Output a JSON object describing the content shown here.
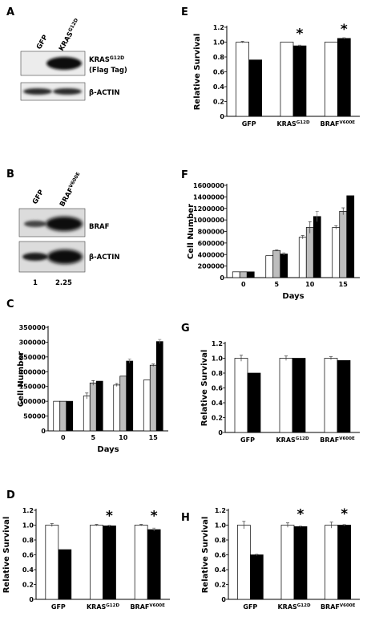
{
  "panels": {
    "A": {
      "letter": "A",
      "lanes": [
        "GFP",
        "KRAS",
        "G12D"
      ],
      "band_labels": [
        {
          "main": "KRAS",
          "sup": "G12D",
          "sub": "(Flag Tag)"
        },
        {
          "main": "β-ACTIN"
        }
      ]
    },
    "B": {
      "letter": "B",
      "lanes": [
        "GFP",
        "BRAF",
        "V600E"
      ],
      "band_labels": [
        {
          "main": "BRAF"
        },
        {
          "main": "β-ACTIN"
        }
      ],
      "quant": [
        "1",
        "2.25"
      ]
    },
    "C": {
      "letter": "C"
    },
    "D": {
      "letter": "D"
    },
    "E": {
      "letter": "E"
    },
    "F": {
      "letter": "F"
    },
    "G": {
      "letter": "G"
    },
    "H": {
      "letter": "H"
    }
  },
  "chart_data": [
    {
      "panel": "C",
      "type": "bar",
      "ylabel": "Cell Number",
      "xlabel": "Days",
      "categories": [
        "0",
        "5",
        "10",
        "15"
      ],
      "ylim": [
        0,
        350000
      ],
      "yticks": [
        "0",
        "50000",
        "100000",
        "150000",
        "200000",
        "250000",
        "300000",
        "350000"
      ],
      "series": [
        {
          "color": "#ffffff",
          "values": [
            100000,
            118000,
            155000,
            172000
          ],
          "errors": [
            0,
            10000,
            5000,
            0
          ]
        },
        {
          "color": "#bdbdbd",
          "values": [
            100000,
            162000,
            185000,
            222000
          ],
          "errors": [
            0,
            8000,
            0,
            4000
          ]
        },
        {
          "color": "#000000",
          "values": [
            100000,
            168000,
            236000,
            302000
          ],
          "errors": [
            0,
            0,
            7000,
            7000
          ]
        }
      ]
    },
    {
      "panel": "D",
      "type": "bar",
      "ylabel": "Relative Survival",
      "categories": [
        {
          "main": "GFP"
        },
        {
          "main": "KRAS",
          "sup": "G12D"
        },
        {
          "main": "BRAF",
          "sup": "V600E"
        }
      ],
      "ylim": [
        0,
        1.2
      ],
      "yticks": [
        "0",
        "0.2",
        "0.4",
        "0.6",
        "0.8",
        "1.0",
        "1.2"
      ],
      "annotations": [
        "",
        "*",
        "*"
      ],
      "series": [
        {
          "color": "#ffffff",
          "values": [
            1.0,
            1.0,
            1.0
          ],
          "errors": [
            0.02,
            0.01,
            0.01
          ]
        },
        {
          "color": "#000000",
          "values": [
            0.67,
            0.99,
            0.94
          ],
          "errors": [
            0,
            0.01,
            0.02
          ]
        }
      ]
    },
    {
      "panel": "E",
      "type": "bar",
      "ylabel": "Relative Survival",
      "categories": [
        {
          "main": "GFP"
        },
        {
          "main": "KRAS",
          "sup": "G12D"
        },
        {
          "main": "BRAF",
          "sup": "V600E"
        }
      ],
      "ylim": [
        0,
        1.2
      ],
      "yticks": [
        "0",
        "0.2",
        "0.4",
        "0.6",
        "0.8",
        "1.0",
        "1.2"
      ],
      "annotations": [
        "",
        "*",
        "*"
      ],
      "series": [
        {
          "color": "#ffffff",
          "values": [
            1.0,
            1.0,
            1.0
          ],
          "errors": [
            0.01,
            0,
            0
          ]
        },
        {
          "color": "#000000",
          "values": [
            0.76,
            0.95,
            1.05
          ],
          "errors": [
            0,
            0.01,
            0.01
          ]
        }
      ]
    },
    {
      "panel": "F",
      "type": "bar",
      "ylabel": "Cell Number",
      "xlabel": "Days",
      "categories": [
        "0",
        "5",
        "10",
        "15"
      ],
      "ylim": [
        0,
        1600000
      ],
      "yticks": [
        "0",
        "200000",
        "400000",
        "600000",
        "800000",
        "1000000",
        "1200000",
        "1400000",
        "1600000"
      ],
      "series": [
        {
          "color": "#ffffff",
          "values": [
            100000,
            380000,
            700000,
            870000
          ],
          "errors": [
            0,
            0,
            30000,
            30000
          ]
        },
        {
          "color": "#bdbdbd",
          "values": [
            100000,
            470000,
            870000,
            1150000
          ],
          "errors": [
            0,
            10000,
            100000,
            60000
          ]
        },
        {
          "color": "#000000",
          "values": [
            100000,
            410000,
            1060000,
            1420000
          ],
          "errors": [
            0,
            20000,
            90000,
            0
          ]
        }
      ]
    },
    {
      "panel": "G",
      "type": "bar",
      "ylabel": "Relative Survival",
      "categories": [
        {
          "main": "GFP"
        },
        {
          "main": "KRAS",
          "sup": "G12D"
        },
        {
          "main": "BRAF",
          "sup": "V600E"
        }
      ],
      "ylim": [
        0,
        1.2
      ],
      "yticks": [
        "0",
        "0.2",
        "0.4",
        "0.6",
        "0.8",
        "1.0",
        "1.2"
      ],
      "annotations": [
        "",
        "",
        ""
      ],
      "series": [
        {
          "color": "#ffffff",
          "values": [
            1.0,
            1.0,
            1.0
          ],
          "errors": [
            0.04,
            0.03,
            0.02
          ]
        },
        {
          "color": "#000000",
          "values": [
            0.8,
            1.0,
            0.97
          ],
          "errors": [
            0,
            0,
            0
          ]
        }
      ]
    },
    {
      "panel": "H",
      "type": "bar",
      "ylabel": "Relative Survival",
      "categories": [
        {
          "main": "GFP"
        },
        {
          "main": "KRAS",
          "sup": "G12D"
        },
        {
          "main": "BRAF",
          "sup": "V600E"
        }
      ],
      "ylim": [
        0,
        1.2
      ],
      "yticks": [
        "0",
        "0.2",
        "0.4",
        "0.6",
        "0.8",
        "1.0",
        "1.2"
      ],
      "annotations": [
        "",
        "*",
        "*"
      ],
      "series": [
        {
          "color": "#ffffff",
          "values": [
            1.0,
            1.0,
            1.0
          ],
          "errors": [
            0.05,
            0.03,
            0.04
          ]
        },
        {
          "color": "#000000",
          "values": [
            0.6,
            0.98,
            1.0
          ],
          "errors": [
            0.01,
            0.01,
            0.01
          ]
        }
      ]
    }
  ]
}
